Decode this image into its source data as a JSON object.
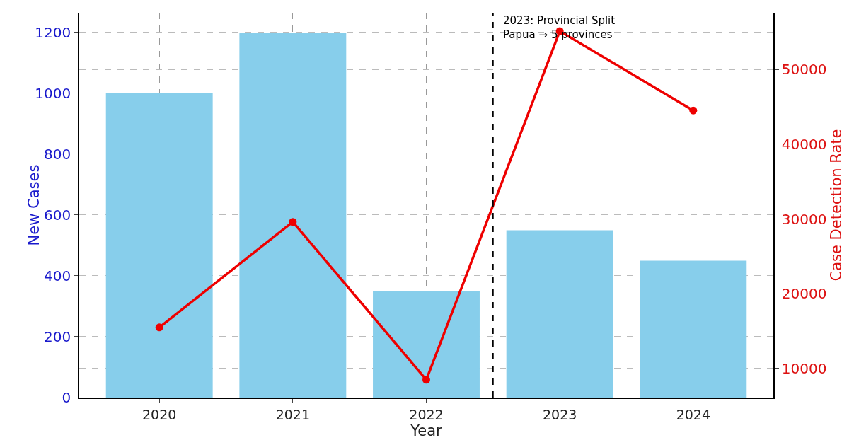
{
  "chart_data": {
    "type": "bar",
    "xlabel": "Year",
    "ylabel": "New Cases",
    "y2label": "Case Detection Rate",
    "x": [
      2020,
      2021,
      2022,
      2023,
      2024
    ],
    "series": [
      {
        "color": "#87ceeb",
        "values": [
          1000,
          1200,
          350,
          550,
          450
        ]
      },
      {
        "type": "line",
        "axis": "y2",
        "color": "#ee0000",
        "marker": "circle",
        "line_style": "solid",
        "values": [
          15500,
          29600,
          8500,
          55100,
          44500
        ]
      }
    ],
    "xlim": [
      2019.4,
      2024.6
    ],
    "xticks": [
      2020,
      2021,
      2022,
      2023,
      2024
    ],
    "ylim": [
      0,
      1265
    ],
    "yticks": [
      0,
      200,
      400,
      600,
      800,
      1000,
      1200
    ],
    "y2lim": [
      6120,
      57570
    ],
    "y2ticks": [
      10000,
      20000,
      30000,
      40000,
      50000
    ],
    "ref_lines": [
      {
        "axis": "x",
        "value": 2022.5,
        "label": "2023: Provincial Split\nPapua → 5 provinces",
        "color": "#000000",
        "line_style": "dashed"
      }
    ],
    "grid": true,
    "legend": false
  }
}
